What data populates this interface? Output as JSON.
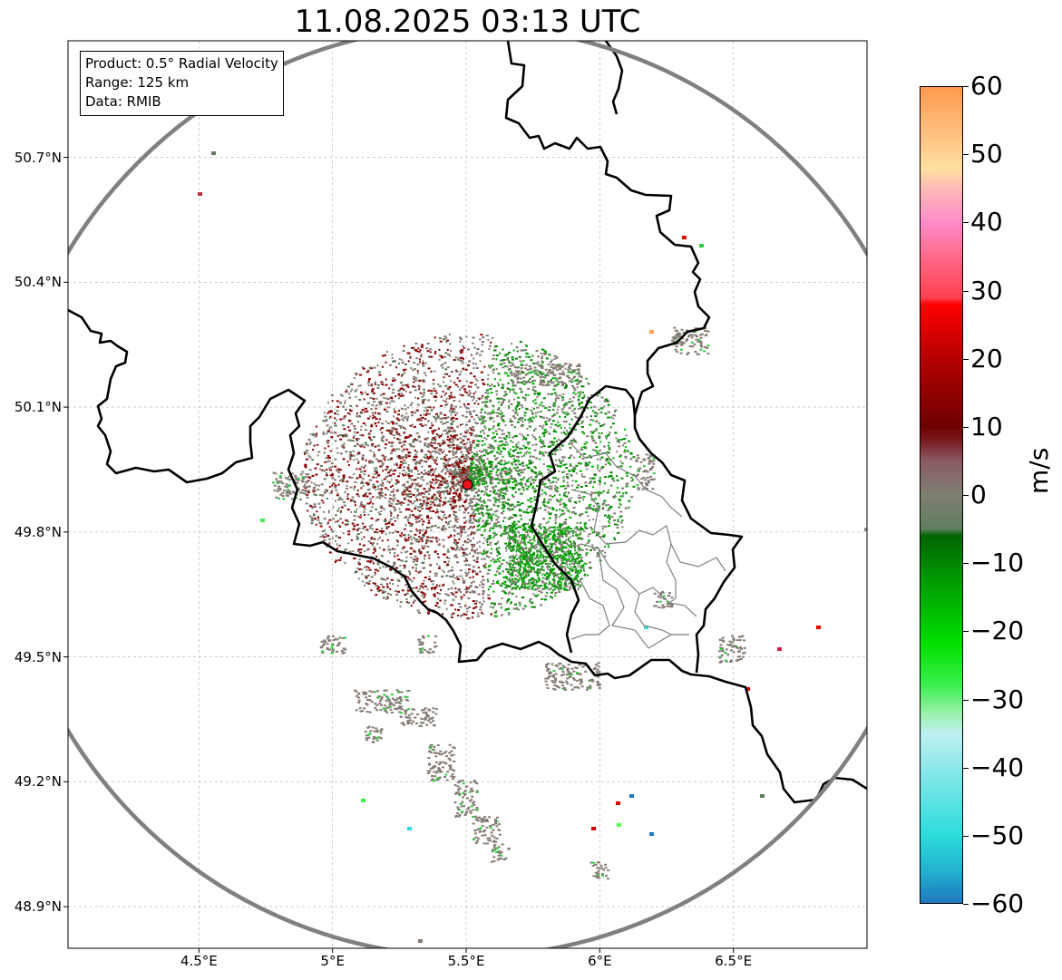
{
  "title": "11.08.2025 03:13 UTC",
  "info_box": {
    "product": "Product: 0.5° Radial Velocity",
    "range": "Range: 125 km",
    "data": "Data: RMIB"
  },
  "map_extent": {
    "lon": [
      4.01,
      7.0
    ],
    "lat": [
      48.8,
      50.98
    ]
  },
  "radar_site": {
    "lon": 5.505,
    "lat": 49.914,
    "color": "#e8141e"
  },
  "range_ring_km": 125,
  "lat_ticks": [
    {
      "value": 50.7,
      "label": "50.7°N"
    },
    {
      "value": 50.4,
      "label": "50.4°N"
    },
    {
      "value": 50.1,
      "label": "50.1°N"
    },
    {
      "value": 49.8,
      "label": "49.8°N"
    },
    {
      "value": 49.5,
      "label": "49.5°N"
    },
    {
      "value": 49.2,
      "label": "49.2°N"
    },
    {
      "value": 48.9,
      "label": "48.9°N"
    }
  ],
  "lon_ticks": [
    {
      "value": 4.5,
      "label": "4.5°E"
    },
    {
      "value": 5.0,
      "label": "5°E"
    },
    {
      "value": 5.5,
      "label": "5.5°E"
    },
    {
      "value": 6.0,
      "label": "6°E"
    },
    {
      "value": 6.5,
      "label": "6.5°E"
    }
  ],
  "colorbar": {
    "unit": "m/s",
    "range": [
      -60,
      60
    ],
    "ticks": [
      {
        "value": 60,
        "label": "60"
      },
      {
        "value": 50,
        "label": "50"
      },
      {
        "value": 40,
        "label": "40"
      },
      {
        "value": 30,
        "label": "30"
      },
      {
        "value": 20,
        "label": "20"
      },
      {
        "value": 10,
        "label": "10"
      },
      {
        "value": 0,
        "label": "0"
      },
      {
        "value": -10,
        "label": "−10"
      },
      {
        "value": -20,
        "label": "−20"
      },
      {
        "value": -30,
        "label": "−30"
      },
      {
        "value": -40,
        "label": "−40"
      },
      {
        "value": -50,
        "label": "−50"
      },
      {
        "value": -60,
        "label": "−60"
      }
    ],
    "stops": [
      {
        "value": -60,
        "color": "#1f78c0"
      },
      {
        "value": -55,
        "color": "#22b4cf"
      },
      {
        "value": -50,
        "color": "#2ddcdc"
      },
      {
        "value": -40,
        "color": "#8ee8ea"
      },
      {
        "value": -35,
        "color": "#c0f0f2"
      },
      {
        "value": -32,
        "color": "#98f0a8"
      },
      {
        "value": -28,
        "color": "#3cf050"
      },
      {
        "value": -22,
        "color": "#00e000"
      },
      {
        "value": -12,
        "color": "#009600"
      },
      {
        "value": -6,
        "color": "#006400"
      },
      {
        "value": -5,
        "color": "#5f7d5f"
      },
      {
        "value": 0,
        "color": "#7f7f73"
      },
      {
        "value": 5,
        "color": "#8a5a64"
      },
      {
        "value": 8,
        "color": "#7a1a20"
      },
      {
        "value": 10,
        "color": "#6e0000"
      },
      {
        "value": 20,
        "color": "#b40000"
      },
      {
        "value": 28,
        "color": "#ff0000"
      },
      {
        "value": 29,
        "color": "#ff4050"
      },
      {
        "value": 35,
        "color": "#ff6a8a"
      },
      {
        "value": 40,
        "color": "#ff8ac8"
      },
      {
        "value": 45,
        "color": "#ffb8b8"
      },
      {
        "value": 48,
        "color": "#ffe0a0"
      },
      {
        "value": 53,
        "color": "#ffc080"
      },
      {
        "value": 60,
        "color": "#ff9a50"
      }
    ]
  },
  "colors": {
    "border_country": "#000000",
    "border_admin": "#808080",
    "range_ring": "#808080",
    "grid": "#b0b0b0",
    "echo_gray": "#857b74",
    "echo_red": "#8b0000",
    "echo_green": "#008c00"
  }
}
